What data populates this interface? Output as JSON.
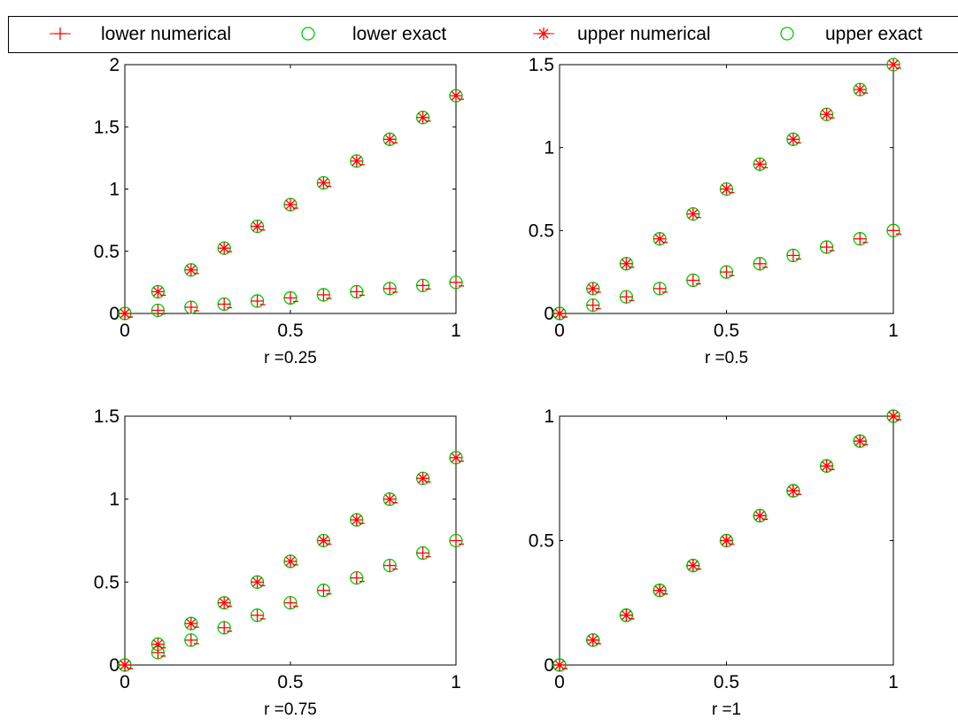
{
  "colors": {
    "numerical": "#ff0000",
    "exact": "#00cc00",
    "axis": "#000000",
    "background": "#ffffff"
  },
  "legend": {
    "placement": "top",
    "items": [
      {
        "label": "lower numerical",
        "marker": "plus",
        "color": "#ff0000"
      },
      {
        "label": "lower exact",
        "marker": "circle",
        "color": "#00cc00"
      },
      {
        "label": "upper numerical",
        "marker": "asterisk",
        "color": "#ff0000"
      },
      {
        "label": "upper exact",
        "marker": "circle",
        "color": "#00cc00"
      }
    ]
  },
  "chart_data": [
    {
      "type": "scatter",
      "xlabel": "r =0.25",
      "xlim": [
        0,
        1
      ],
      "ylim": [
        0,
        2
      ],
      "xticks": [
        "0",
        "0.5",
        "1"
      ],
      "yticks": [
        "0",
        "0.5",
        "1",
        "1.5",
        "2"
      ],
      "grid": false,
      "x": [
        0,
        0.1,
        0.2,
        0.3,
        0.4,
        0.5,
        0.6,
        0.7,
        0.8,
        0.9,
        1
      ],
      "series": [
        {
          "name": "lower numerical",
          "values": [
            0,
            0.025,
            0.05,
            0.075,
            0.1,
            0.125,
            0.15,
            0.175,
            0.2,
            0.225,
            0.25
          ]
        },
        {
          "name": "lower exact",
          "values": [
            0,
            0.025,
            0.05,
            0.075,
            0.1,
            0.125,
            0.15,
            0.175,
            0.2,
            0.225,
            0.25
          ]
        },
        {
          "name": "upper numerical",
          "values": [
            0,
            0.175,
            0.35,
            0.525,
            0.7,
            0.875,
            1.05,
            1.225,
            1.4,
            1.575,
            1.75
          ]
        },
        {
          "name": "upper exact",
          "values": [
            0,
            0.175,
            0.35,
            0.525,
            0.7,
            0.875,
            1.05,
            1.225,
            1.4,
            1.575,
            1.75
          ]
        }
      ]
    },
    {
      "type": "scatter",
      "xlabel": "r =0.5",
      "xlim": [
        0,
        1
      ],
      "ylim": [
        0,
        1.5
      ],
      "xticks": [
        "0",
        "0.5",
        "1"
      ],
      "yticks": [
        "0",
        "0.5",
        "1",
        "1.5"
      ],
      "grid": false,
      "x": [
        0,
        0.1,
        0.2,
        0.3,
        0.4,
        0.5,
        0.6,
        0.7,
        0.8,
        0.9,
        1
      ],
      "series": [
        {
          "name": "lower numerical",
          "values": [
            0,
            0.05,
            0.1,
            0.15,
            0.2,
            0.25,
            0.3,
            0.35,
            0.4,
            0.45,
            0.5
          ]
        },
        {
          "name": "lower exact",
          "values": [
            0,
            0.05,
            0.1,
            0.15,
            0.2,
            0.25,
            0.3,
            0.35,
            0.4,
            0.45,
            0.5
          ]
        },
        {
          "name": "upper numerical",
          "values": [
            0,
            0.15,
            0.3,
            0.45,
            0.6,
            0.75,
            0.9,
            1.05,
            1.2,
            1.35,
            1.5
          ]
        },
        {
          "name": "upper exact",
          "values": [
            0,
            0.15,
            0.3,
            0.45,
            0.6,
            0.75,
            0.9,
            1.05,
            1.2,
            1.35,
            1.5
          ]
        }
      ]
    },
    {
      "type": "scatter",
      "xlabel": "r =0.75",
      "xlim": [
        0,
        1
      ],
      "ylim": [
        0,
        1.5
      ],
      "xticks": [
        "0",
        "0.5",
        "1"
      ],
      "yticks": [
        "0",
        "0.5",
        "1",
        "1.5"
      ],
      "grid": false,
      "x": [
        0,
        0.1,
        0.2,
        0.3,
        0.4,
        0.5,
        0.6,
        0.7,
        0.8,
        0.9,
        1
      ],
      "series": [
        {
          "name": "lower numerical",
          "values": [
            0,
            0.075,
            0.15,
            0.225,
            0.3,
            0.375,
            0.45,
            0.525,
            0.6,
            0.675,
            0.75
          ]
        },
        {
          "name": "lower exact",
          "values": [
            0,
            0.075,
            0.15,
            0.225,
            0.3,
            0.375,
            0.45,
            0.525,
            0.6,
            0.675,
            0.75
          ]
        },
        {
          "name": "upper numerical",
          "values": [
            0,
            0.125,
            0.25,
            0.375,
            0.5,
            0.625,
            0.75,
            0.875,
            1.0,
            1.125,
            1.25
          ]
        },
        {
          "name": "upper exact",
          "values": [
            0,
            0.125,
            0.25,
            0.375,
            0.5,
            0.625,
            0.75,
            0.875,
            1.0,
            1.125,
            1.25
          ]
        }
      ]
    },
    {
      "type": "scatter",
      "xlabel": "r =1",
      "xlim": [
        0,
        1
      ],
      "ylim": [
        0,
        1
      ],
      "xticks": [
        "0",
        "0.5",
        "1"
      ],
      "yticks": [
        "0",
        "0.5",
        "1"
      ],
      "grid": false,
      "x": [
        0,
        0.1,
        0.2,
        0.3,
        0.4,
        0.5,
        0.6,
        0.7,
        0.8,
        0.9,
        1
      ],
      "series": [
        {
          "name": "lower numerical",
          "values": [
            0,
            0.1,
            0.2,
            0.3,
            0.4,
            0.5,
            0.6,
            0.7,
            0.8,
            0.9,
            1.0
          ]
        },
        {
          "name": "lower exact",
          "values": [
            0,
            0.1,
            0.2,
            0.3,
            0.4,
            0.5,
            0.6,
            0.7,
            0.8,
            0.9,
            1.0
          ]
        },
        {
          "name": "upper numerical",
          "values": [
            0,
            0.1,
            0.2,
            0.3,
            0.4,
            0.5,
            0.6,
            0.7,
            0.8,
            0.9,
            1.0
          ]
        },
        {
          "name": "upper exact",
          "values": [
            0,
            0.1,
            0.2,
            0.3,
            0.4,
            0.5,
            0.6,
            0.7,
            0.8,
            0.9,
            1.0
          ]
        }
      ]
    }
  ]
}
